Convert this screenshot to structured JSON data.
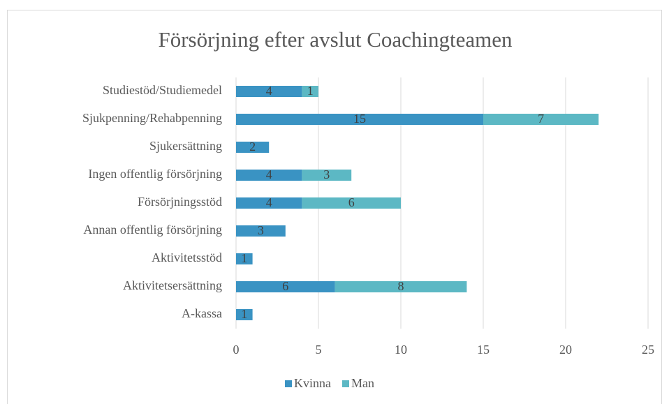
{
  "chart_data": {
    "type": "bar",
    "orientation": "horizontal",
    "stacked": true,
    "title": "Försörjning efter avslut Coachingteamen",
    "categories": [
      "Studiestöd/Studiemedel",
      "Sjukpenning/Rehabpenning",
      "Sjukersättning",
      "Ingen offentlig försörjning",
      "Försörjningsstöd",
      "Annan offentlig försörjning",
      "Aktivitetsstöd",
      "Aktivitetsersättning",
      "A-kassa"
    ],
    "series": [
      {
        "name": "Kvinna",
        "color": "#3a93c3",
        "values": [
          4,
          15,
          2,
          4,
          4,
          3,
          1,
          6,
          1
        ]
      },
      {
        "name": "Man",
        "color": "#5cb8c4",
        "values": [
          1,
          7,
          null,
          3,
          6,
          null,
          null,
          8,
          null
        ]
      }
    ],
    "xlim": [
      0,
      25
    ],
    "xticks": [
      0,
      5,
      10,
      15,
      20,
      25
    ],
    "grid": true,
    "legend": "bottom"
  }
}
